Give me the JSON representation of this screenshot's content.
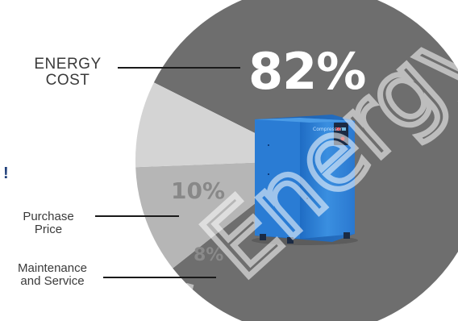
{
  "chart_data": {
    "type": "pie",
    "slices": [
      {
        "label": "ENERGY COST",
        "label_lines": [
          "ENERGY",
          "COST"
        ],
        "value": 82,
        "display": "82%",
        "color": "#6e6e6e"
      },
      {
        "label": "Purchase Price",
        "label_lines": [
          "Purchase",
          "Price"
        ],
        "value": 10,
        "display": "10%",
        "color": "#b6b6b6"
      },
      {
        "label": "Maintenance and Service",
        "label_lines": [
          "Maintenance",
          "and Service"
        ],
        "value": 8,
        "display": "8%",
        "color": "#d4d4d4"
      }
    ]
  },
  "page": {
    "exclamation": "!",
    "watermark": "Energy",
    "compressor_brand": "Compressor",
    "compressor_color": "#2f7fd3"
  }
}
